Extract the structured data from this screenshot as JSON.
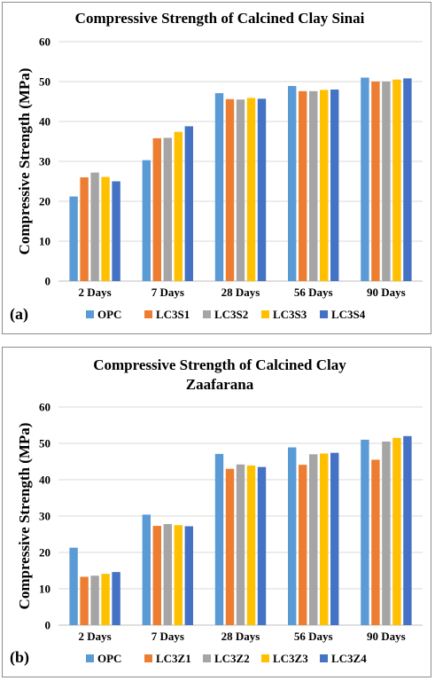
{
  "colors": [
    "#5b9bd5",
    "#ed7d31",
    "#a5a5a5",
    "#ffc000",
    "#4472c4"
  ],
  "chart_data": [
    {
      "type": "bar",
      "panel_label": "(a)",
      "title_lines": [
        "Compressive Strength of Calcined Clay Sinai"
      ],
      "ylabel": "Compressive Strength (MPa)",
      "xlabel": "",
      "ylim": [
        0,
        60
      ],
      "yticks": [
        0,
        10,
        20,
        30,
        40,
        50,
        60
      ],
      "grid": true,
      "legend_position": "bottom",
      "categories": [
        "2 Days",
        "7 Days",
        "28 Days",
        "56 Days",
        "90 Days"
      ],
      "series": [
        {
          "name": "OPC",
          "values": [
            21.2,
            30.3,
            47.1,
            48.9,
            51.0
          ]
        },
        {
          "name": "LC3S1",
          "values": [
            26.0,
            35.8,
            45.6,
            47.6,
            50.0
          ]
        },
        {
          "name": "LC3S2",
          "values": [
            27.2,
            35.9,
            45.5,
            47.6,
            50.0
          ]
        },
        {
          "name": "LC3S3",
          "values": [
            26.1,
            37.4,
            45.9,
            47.9,
            50.5
          ]
        },
        {
          "name": "LC3S4",
          "values": [
            25.0,
            38.8,
            45.7,
            48.0,
            50.8
          ]
        }
      ]
    },
    {
      "type": "bar",
      "panel_label": "(b)",
      "title_lines": [
        "Compressive Strength of Calcined Clay",
        "Zaafarana"
      ],
      "ylabel": "Compressive Strength (MPa)",
      "xlabel": "",
      "ylim": [
        0,
        60
      ],
      "yticks": [
        0,
        10,
        20,
        30,
        40,
        50,
        60
      ],
      "grid": true,
      "legend_position": "bottom",
      "categories": [
        "2 Days",
        "7 Days",
        "28 Days",
        "56 Days",
        "90 Days"
      ],
      "series": [
        {
          "name": "OPC",
          "values": [
            21.3,
            30.4,
            47.1,
            48.9,
            51.0
          ]
        },
        {
          "name": "LC3Z1",
          "values": [
            13.3,
            27.3,
            43.0,
            44.1,
            45.5
          ]
        },
        {
          "name": "LC3Z2",
          "values": [
            13.6,
            27.8,
            44.2,
            47.0,
            50.5
          ]
        },
        {
          "name": "LC3Z3",
          "values": [
            14.1,
            27.5,
            43.9,
            47.2,
            51.5
          ]
        },
        {
          "name": "LC3Z4",
          "values": [
            14.6,
            27.2,
            43.5,
            47.4,
            52.0
          ]
        }
      ]
    }
  ]
}
